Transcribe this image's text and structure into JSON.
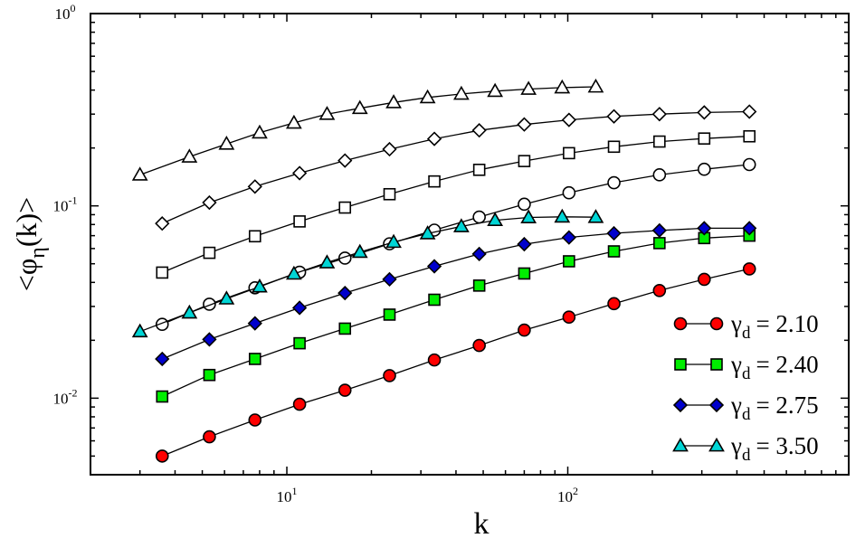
{
  "chart_data": {
    "type": "scatter",
    "xscale": "log",
    "yscale": "log",
    "xlim": [
      2,
      1000
    ],
    "ylim": [
      0.004,
      1
    ],
    "xlabel": "k",
    "ylabel_parts": {
      "open": "<φ",
      "sub": "η",
      "close": "(k)>"
    },
    "xticks": [
      {
        "value": 10,
        "base": "10",
        "exp": "1"
      },
      {
        "value": 100,
        "base": "10",
        "exp": "2"
      }
    ],
    "yticks": [
      {
        "value": 0.01,
        "base": "10",
        "exp": "-2"
      },
      {
        "value": 0.1,
        "base": "10",
        "exp": "-1"
      },
      {
        "value": 1,
        "base": "10",
        "exp": "0"
      }
    ],
    "grid": false,
    "legend_position": "bottom-right",
    "series": [
      {
        "name": "γd = 2.10",
        "label_sym": "γ",
        "label_sub": "d",
        "label_val": "= 2.10",
        "marker": "circle",
        "fill": "#ff0000",
        "filled": true,
        "in_legend": true,
        "x": [
          3.6,
          5.3,
          7.7,
          11.1,
          16.1,
          23.2,
          33.5,
          48.4,
          70,
          101,
          146,
          212,
          306,
          443
        ],
        "y": [
          0.005,
          0.0063,
          0.0077,
          0.0093,
          0.011,
          0.0131,
          0.0158,
          0.0188,
          0.0226,
          0.0264,
          0.031,
          0.0363,
          0.0415,
          0.047
        ]
      },
      {
        "name": "γd = 2.40",
        "label_sym": "γ",
        "label_sub": "d",
        "label_val": "= 2.40",
        "marker": "square",
        "fill": "#00ee00",
        "filled": true,
        "in_legend": true,
        "x": [
          3.6,
          5.3,
          7.7,
          11.1,
          16.1,
          23.2,
          33.5,
          48.4,
          70,
          101,
          146,
          212,
          306,
          443
        ],
        "y": [
          0.0102,
          0.0132,
          0.016,
          0.0193,
          0.023,
          0.0272,
          0.0325,
          0.0385,
          0.0445,
          0.0515,
          0.058,
          0.064,
          0.068,
          0.07
        ]
      },
      {
        "name": "γd = 2.75",
        "label_sym": "γ",
        "label_sub": "d",
        "label_val": "= 2.75",
        "marker": "diamond",
        "fill": "#0000cc",
        "filled": true,
        "in_legend": true,
        "x": [
          3.6,
          5.3,
          7.7,
          11.1,
          16.1,
          23.2,
          33.5,
          48.4,
          70,
          101,
          146,
          212,
          306,
          443
        ],
        "y": [
          0.016,
          0.0202,
          0.0245,
          0.0295,
          0.0352,
          0.0415,
          0.0485,
          0.0562,
          0.0632,
          0.0685,
          0.072,
          0.0745,
          0.0765,
          0.0765
        ]
      },
      {
        "name": "γd = 3.50",
        "label_sym": "γ",
        "label_sub": "d",
        "label_val": "= 3.50",
        "marker": "triangle",
        "fill": "#00d5d5",
        "filled": true,
        "in_legend": true,
        "x": [
          3,
          4.5,
          6.1,
          8,
          10.6,
          13.9,
          18.2,
          24,
          31.7,
          41.8,
          55.1,
          72.5,
          95.5,
          125.8
        ],
        "y": [
          0.0222,
          0.0278,
          0.0329,
          0.038,
          0.0443,
          0.0507,
          0.0575,
          0.0648,
          0.0718,
          0.0782,
          0.0842,
          0.087,
          0.0877,
          0.0873
        ]
      },
      {
        "name": "open circles",
        "marker": "circle",
        "fill": "#ffffff",
        "filled": false,
        "in_legend": false,
        "x": [
          3.6,
          5.3,
          7.7,
          11.1,
          16.1,
          23.2,
          33.5,
          48.4,
          70,
          101,
          146,
          212,
          306,
          443
        ],
        "y": [
          0.0242,
          0.0308,
          0.0375,
          0.0452,
          0.0535,
          0.0635,
          0.0748,
          0.0875,
          0.102,
          0.117,
          0.132,
          0.145,
          0.155,
          0.164
        ]
      },
      {
        "name": "open squares",
        "marker": "square",
        "fill": "#ffffff",
        "filled": false,
        "in_legend": false,
        "x": [
          3.6,
          5.3,
          7.7,
          11.1,
          16.1,
          23.2,
          33.5,
          48.4,
          70,
          101,
          146,
          212,
          306,
          443
        ],
        "y": [
          0.045,
          0.057,
          0.0695,
          0.083,
          0.098,
          0.115,
          0.134,
          0.154,
          0.171,
          0.188,
          0.203,
          0.216,
          0.224,
          0.23
        ]
      },
      {
        "name": "open diamonds",
        "marker": "diamond",
        "fill": "#ffffff",
        "filled": false,
        "in_legend": false,
        "x": [
          3.6,
          5.3,
          7.7,
          11.1,
          16.1,
          23.2,
          33.5,
          48.4,
          70,
          101,
          146,
          212,
          306,
          443
        ],
        "y": [
          0.081,
          0.104,
          0.126,
          0.148,
          0.172,
          0.197,
          0.223,
          0.247,
          0.265,
          0.28,
          0.292,
          0.3,
          0.306,
          0.309
        ]
      },
      {
        "name": "open triangles",
        "marker": "triangle",
        "fill": "#ffffff",
        "filled": false,
        "in_legend": false,
        "x": [
          3,
          4.5,
          6.1,
          8,
          10.6,
          13.9,
          18.2,
          24,
          31.7,
          41.8,
          55.1,
          72.5,
          95.5,
          125.8
        ],
        "y": [
          0.145,
          0.18,
          0.21,
          0.24,
          0.27,
          0.3,
          0.322,
          0.345,
          0.366,
          0.382,
          0.395,
          0.405,
          0.412,
          0.416
        ]
      }
    ]
  }
}
